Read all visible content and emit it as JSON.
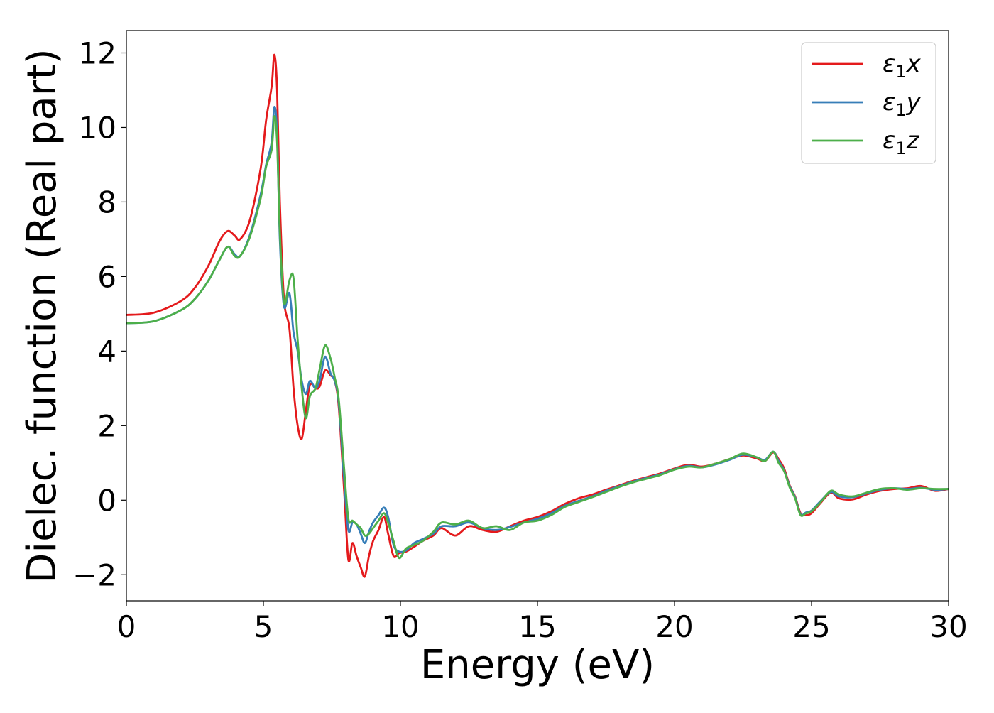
{
  "chart_data": {
    "type": "line",
    "title": "",
    "xlabel": "Energy (eV)",
    "ylabel": "Dielec. function (Real part)",
    "xlim": [
      0,
      30
    ],
    "ylim": [
      -2.7,
      12.6
    ],
    "xticks": [
      0,
      5,
      10,
      15,
      20,
      25,
      30
    ],
    "xtick_labels": [
      "0",
      "5",
      "10",
      "15",
      "20",
      "25",
      "30"
    ],
    "yticks": [
      -2,
      0,
      2,
      4,
      6,
      8,
      10,
      12
    ],
    "ytick_labels": [
      "−2",
      "0",
      "2",
      "4",
      "6",
      "8",
      "10",
      "12"
    ],
    "grid": false,
    "legend_position": "top-right",
    "series": [
      {
        "name": "ε1x",
        "legend_base": "ε",
        "legend_sub": "1",
        "legend_suffix": "x",
        "color": "#e41a1c",
        "x": [
          0,
          1,
          2,
          2.5,
          3,
          3.4,
          3.7,
          3.95,
          4.15,
          4.5,
          4.9,
          5.1,
          5.3,
          5.4,
          5.5,
          5.6,
          5.75,
          5.95,
          6.1,
          6.25,
          6.4,
          6.55,
          6.7,
          6.9,
          7.05,
          7.25,
          7.45,
          7.6,
          7.75,
          7.95,
          8.1,
          8.25,
          8.4,
          8.55,
          8.7,
          8.85,
          9.0,
          9.2,
          9.4,
          9.55,
          9.75,
          9.95,
          10.2,
          10.5,
          10.8,
          11.2,
          11.5,
          12.0,
          12.5,
          13.0,
          13.5,
          14.0,
          14.5,
          15.0,
          15.5,
          16.0,
          16.5,
          17.0,
          17.5,
          18.0,
          18.5,
          19.0,
          19.5,
          20.0,
          20.5,
          21.0,
          21.5,
          22.0,
          22.5,
          23.0,
          23.3,
          23.6,
          23.8,
          24.0,
          24.2,
          24.4,
          24.6,
          24.8,
          25.0,
          25.3,
          25.7,
          26.0,
          26.5,
          27.0,
          27.5,
          28.0,
          28.5,
          29.0,
          29.5,
          30.0
        ],
        "y": [
          4.97,
          5.03,
          5.35,
          5.7,
          6.3,
          6.95,
          7.22,
          7.1,
          7.0,
          7.5,
          8.9,
          10.2,
          11.1,
          11.95,
          11.0,
          8.0,
          5.4,
          4.6,
          3.0,
          2.0,
          1.65,
          2.4,
          3.1,
          3.0,
          3.05,
          3.48,
          3.35,
          3.2,
          2.5,
          0.2,
          -1.6,
          -1.15,
          -1.5,
          -1.8,
          -2.05,
          -1.5,
          -1.1,
          -0.8,
          -0.45,
          -0.9,
          -1.5,
          -1.42,
          -1.38,
          -1.25,
          -1.1,
          -0.95,
          -0.75,
          -0.95,
          -0.7,
          -0.8,
          -0.85,
          -0.7,
          -0.55,
          -0.45,
          -0.3,
          -0.1,
          0.05,
          0.15,
          0.28,
          0.4,
          0.52,
          0.62,
          0.72,
          0.85,
          0.95,
          0.9,
          0.98,
          1.1,
          1.2,
          1.12,
          1.05,
          1.28,
          1.1,
          0.85,
          0.4,
          0.1,
          -0.35,
          -0.4,
          -0.35,
          -0.1,
          0.2,
          0.05,
          0.02,
          0.15,
          0.25,
          0.3,
          0.32,
          0.38,
          0.25,
          0.3
        ]
      },
      {
        "name": "ε1y",
        "legend_base": "ε",
        "legend_sub": "1",
        "legend_suffix": "y",
        "color": "#377eb8",
        "x": [
          0,
          1,
          2,
          2.5,
          3,
          3.4,
          3.7,
          3.95,
          4.15,
          4.5,
          4.9,
          5.1,
          5.3,
          5.4,
          5.5,
          5.6,
          5.75,
          5.95,
          6.1,
          6.25,
          6.4,
          6.55,
          6.7,
          6.9,
          7.05,
          7.25,
          7.45,
          7.6,
          7.75,
          7.95,
          8.1,
          8.25,
          8.4,
          8.55,
          8.7,
          8.85,
          9.0,
          9.2,
          9.4,
          9.55,
          9.75,
          9.95,
          10.2,
          10.5,
          10.8,
          11.2,
          11.5,
          12.0,
          12.5,
          13.0,
          13.5,
          14.0,
          14.5,
          15.0,
          15.5,
          16.0,
          16.5,
          17.0,
          17.5,
          18.0,
          18.5,
          19.0,
          19.5,
          20.0,
          20.5,
          21.0,
          21.5,
          22.0,
          22.5,
          23.0,
          23.3,
          23.6,
          23.8,
          24.0,
          24.2,
          24.4,
          24.6,
          24.8,
          25.0,
          25.3,
          25.7,
          26.0,
          26.5,
          27.0,
          27.5,
          28.0,
          28.5,
          29.0,
          29.5,
          30.0
        ],
        "y": [
          4.75,
          4.8,
          5.1,
          5.4,
          5.9,
          6.45,
          6.8,
          6.6,
          6.55,
          7.1,
          8.2,
          9.0,
          9.6,
          10.55,
          9.8,
          7.0,
          5.2,
          5.55,
          4.5,
          4.0,
          3.2,
          2.85,
          3.2,
          3.0,
          3.2,
          3.85,
          3.4,
          3.2,
          2.6,
          0.5,
          -0.8,
          -0.6,
          -0.65,
          -0.9,
          -1.15,
          -0.85,
          -0.6,
          -0.4,
          -0.2,
          -0.45,
          -1.2,
          -1.38,
          -1.35,
          -1.15,
          -1.05,
          -0.9,
          -0.7,
          -0.7,
          -0.6,
          -0.75,
          -0.8,
          -0.72,
          -0.6,
          -0.5,
          -0.35,
          -0.15,
          -0.02,
          0.1,
          0.25,
          0.38,
          0.5,
          0.6,
          0.7,
          0.83,
          0.92,
          0.88,
          0.96,
          1.08,
          1.22,
          1.15,
          1.08,
          1.3,
          1.05,
          0.8,
          0.38,
          0.08,
          -0.38,
          -0.33,
          -0.28,
          -0.05,
          0.22,
          0.1,
          0.08,
          0.18,
          0.28,
          0.32,
          0.3,
          0.33,
          0.28,
          0.3
        ]
      },
      {
        "name": "ε1z",
        "legend_base": "ε",
        "legend_sub": "1",
        "legend_suffix": "z",
        "color": "#4daf4a",
        "x": [
          0,
          1,
          2,
          2.5,
          3,
          3.4,
          3.7,
          3.95,
          4.15,
          4.5,
          4.9,
          5.1,
          5.3,
          5.4,
          5.5,
          5.6,
          5.75,
          5.95,
          6.1,
          6.25,
          6.4,
          6.55,
          6.7,
          6.9,
          7.05,
          7.25,
          7.45,
          7.6,
          7.75,
          7.95,
          8.1,
          8.25,
          8.4,
          8.55,
          8.7,
          8.85,
          9.0,
          9.2,
          9.4,
          9.55,
          9.75,
          9.95,
          10.2,
          10.5,
          10.8,
          11.2,
          11.5,
          12.0,
          12.5,
          13.0,
          13.5,
          14.0,
          14.5,
          15.0,
          15.5,
          16.0,
          16.5,
          17.0,
          17.5,
          18.0,
          18.5,
          19.0,
          19.5,
          20.0,
          20.5,
          21.0,
          21.5,
          22.0,
          22.5,
          23.0,
          23.3,
          23.6,
          23.8,
          24.0,
          24.2,
          24.4,
          24.6,
          24.8,
          25.0,
          25.3,
          25.7,
          26.0,
          26.5,
          27.0,
          27.5,
          28.0,
          28.5,
          29.0,
          29.5,
          30.0
        ],
        "y": [
          4.75,
          4.8,
          5.1,
          5.4,
          5.9,
          6.45,
          6.8,
          6.55,
          6.55,
          7.05,
          8.1,
          8.95,
          9.4,
          10.3,
          9.6,
          7.2,
          5.3,
          5.9,
          5.95,
          4.3,
          3.0,
          2.2,
          2.8,
          3.0,
          3.5,
          4.15,
          3.8,
          3.3,
          2.7,
          0.8,
          -0.5,
          -0.55,
          -0.65,
          -0.75,
          -0.95,
          -0.9,
          -0.75,
          -0.55,
          -0.35,
          -0.6,
          -1.1,
          -1.55,
          -1.3,
          -1.2,
          -1.1,
          -0.85,
          -0.6,
          -0.65,
          -0.55,
          -0.75,
          -0.7,
          -0.8,
          -0.6,
          -0.55,
          -0.4,
          -0.18,
          -0.05,
          0.08,
          0.22,
          0.36,
          0.48,
          0.58,
          0.68,
          0.82,
          0.9,
          0.88,
          0.98,
          1.1,
          1.25,
          1.15,
          1.05,
          1.3,
          1.0,
          0.78,
          0.35,
          0.05,
          -0.4,
          -0.35,
          -0.3,
          -0.08,
          0.25,
          0.15,
          0.1,
          0.2,
          0.3,
          0.32,
          0.28,
          0.32,
          0.3,
          0.3
        ]
      }
    ]
  }
}
